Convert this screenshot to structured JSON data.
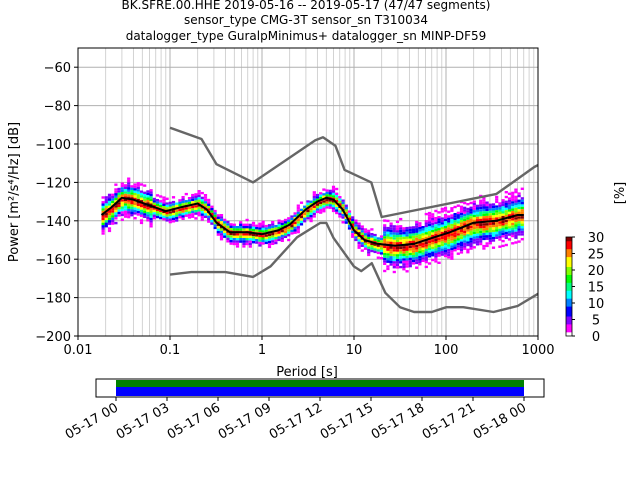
{
  "header": {
    "line1": "BK.SFRE.00.HHE   2019-05-16 -- 2019-05-17  (47/47 segments)",
    "line2": "sensor_type CMG-3T sensor_sn T310034",
    "line3": "datalogger_type GuralpMinimus+ datalogger_sn MINP-DF59"
  },
  "chart_data": {
    "type": "heatmap",
    "xlabel": "Period [s]",
    "ylabel": "Power [m²/s⁴/Hz] [dB]",
    "x_scale": "log",
    "xlim": [
      0.01,
      1000
    ],
    "ylim": [
      -200,
      -50
    ],
    "xticks": [
      {
        "v": 0.01,
        "label": "0.01"
      },
      {
        "v": 0.1,
        "label": "0.1"
      },
      {
        "v": 1,
        "label": "1"
      },
      {
        "v": 10,
        "label": "10"
      },
      {
        "v": 100,
        "label": "100"
      },
      {
        "v": 1000,
        "label": "1000"
      }
    ],
    "yticks": [
      {
        "v": -60,
        "label": "−60"
      },
      {
        "v": -80,
        "label": "−80"
      },
      {
        "v": -100,
        "label": "−100"
      },
      {
        "v": -120,
        "label": "−120"
      },
      {
        "v": -140,
        "label": "−140"
      },
      {
        "v": -160,
        "label": "−160"
      },
      {
        "v": -180,
        "label": "−180"
      },
      {
        "v": -200,
        "label": "−200"
      }
    ],
    "grid": true,
    "series": [
      {
        "role": "nhnm",
        "color": "#666666",
        "points": [
          [
            0.1,
            -91.5
          ],
          [
            0.22,
            -97.4
          ],
          [
            0.32,
            -110.5
          ],
          [
            0.8,
            -120
          ],
          [
            3.8,
            -98
          ],
          [
            4.6,
            -96.5
          ],
          [
            6.3,
            -101
          ],
          [
            7.9,
            -113.5
          ],
          [
            15.4,
            -120
          ],
          [
            20,
            -138
          ],
          [
            354,
            -126
          ],
          [
            912,
            -112
          ],
          [
            1000,
            -111
          ]
        ]
      },
      {
        "role": "nlnm",
        "color": "#666666",
        "points": [
          [
            0.1,
            -168
          ],
          [
            0.17,
            -166.7
          ],
          [
            0.4,
            -166.7
          ],
          [
            0.8,
            -169.2
          ],
          [
            1.24,
            -163.7
          ],
          [
            2.4,
            -148.6
          ],
          [
            4.3,
            -141.1
          ],
          [
            5,
            -141.1
          ],
          [
            6,
            -149
          ],
          [
            10,
            -163.8
          ],
          [
            12,
            -166.2
          ],
          [
            15.6,
            -162.1
          ],
          [
            21.9,
            -177.5
          ],
          [
            31.6,
            -185
          ],
          [
            45,
            -187.5
          ],
          [
            70,
            -187.5
          ],
          [
            101,
            -185
          ],
          [
            154,
            -185
          ],
          [
            328,
            -187.5
          ],
          [
            600,
            -184.4
          ],
          [
            1000,
            -178
          ]
        ]
      },
      {
        "role": "mode",
        "color": "#000000",
        "points": [
          [
            0.018,
            -137
          ],
          [
            0.023,
            -133
          ],
          [
            0.03,
            -128
          ],
          [
            0.04,
            -129
          ],
          [
            0.06,
            -132
          ],
          [
            0.09,
            -135
          ],
          [
            0.13,
            -133
          ],
          [
            0.2,
            -131
          ],
          [
            0.25,
            -134
          ],
          [
            0.32,
            -141
          ],
          [
            0.45,
            -146
          ],
          [
            0.7,
            -146
          ],
          [
            1.0,
            -147
          ],
          [
            1.5,
            -145
          ],
          [
            2.0,
            -142
          ],
          [
            3.0,
            -134
          ],
          [
            4.0,
            -130
          ],
          [
            5.0,
            -128
          ],
          [
            6.0,
            -129
          ],
          [
            7.5,
            -134
          ],
          [
            10,
            -145
          ],
          [
            13,
            -150
          ],
          [
            18,
            -152
          ],
          [
            28,
            -153
          ],
          [
            45,
            -152
          ],
          [
            70,
            -149
          ],
          [
            110,
            -146
          ],
          [
            200,
            -141
          ],
          [
            350,
            -140
          ],
          [
            600,
            -137
          ],
          [
            700,
            -137
          ]
        ]
      }
    ],
    "colorbar": {
      "label": "[%]",
      "min": 0,
      "max": 30,
      "ticks": [
        {
          "v": 0,
          "label": "0"
        },
        {
          "v": 5,
          "label": "5"
        },
        {
          "v": 10,
          "label": "10"
        },
        {
          "v": 15,
          "label": "15"
        },
        {
          "v": 20,
          "label": "20"
        },
        {
          "v": 25,
          "label": "25"
        },
        {
          "v": 30,
          "label": "30"
        }
      ],
      "colors": [
        "#ffffff",
        "#ff00ff",
        "#8000ff",
        "#0000ff",
        "#0080ff",
        "#00ffff",
        "#00ff80",
        "#00ff00",
        "#80ff00",
        "#ffff00",
        "#ff8000",
        "#ff0000",
        "#800000"
      ]
    }
  },
  "coverage": {
    "ticks": [
      "05-17 00",
      "05-17 03",
      "05-17 06",
      "05-17 09",
      "05-17 12",
      "05-17 15",
      "05-17 18",
      "05-17 21",
      "05-18 00"
    ],
    "data_color": "#0000ff",
    "gap_color": "#008000"
  }
}
